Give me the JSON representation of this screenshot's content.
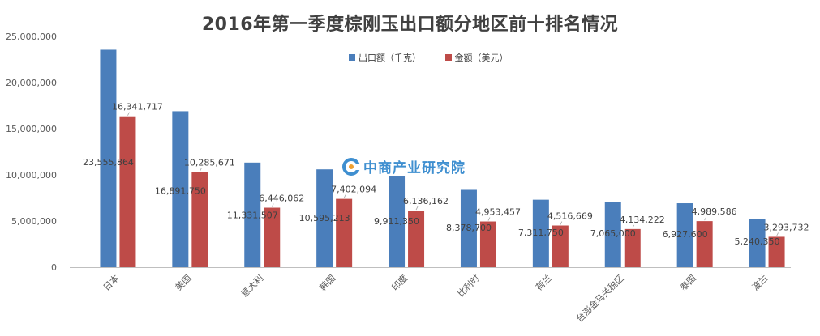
{
  "chart_data": {
    "type": "bar",
    "title": "2016年第一季度棕刚玉出口额分地区前十排名情况",
    "categories": [
      "日本",
      "美国",
      "意大利",
      "韩国",
      "印度",
      "比利时",
      "荷兰",
      "台澎金马关税区",
      "泰国",
      "波兰"
    ],
    "series": [
      {
        "name": "出口额（千克）",
        "color": "#4a7ebb",
        "values": [
          23555864,
          16891750,
          11331507,
          10595213,
          9911350,
          8378700,
          7311750,
          7065000,
          6927600,
          5240350
        ],
        "labels": [
          "23,555,864",
          "16,891,750",
          "11,331,507",
          "10,595,213",
          "9,911,350",
          "8,378,700",
          "7,311,750",
          "7,065,000",
          "6,927,600",
          "5,240,350"
        ]
      },
      {
        "name": "金额（美元）",
        "color": "#be4b48",
        "values": [
          16341717,
          10285671,
          6446062,
          7402094,
          6136162,
          4953457,
          4516669,
          4134222,
          4989586,
          3293732
        ],
        "labels": [
          "16,341,717",
          "10,285,671",
          "6,446,062",
          "7,402,094",
          "6,136,162",
          "4,953,457",
          "4,516,669",
          "4,134,222",
          "4,989,586",
          "3,293,732"
        ]
      }
    ],
    "yticks": [
      "0",
      "5,000,000",
      "10,000,000",
      "15,000,000",
      "20,000,000",
      "25,000,000"
    ],
    "ylim": [
      0,
      25000000
    ],
    "grid": false,
    "legend": "top-center"
  },
  "watermark": "中商产业研究院"
}
